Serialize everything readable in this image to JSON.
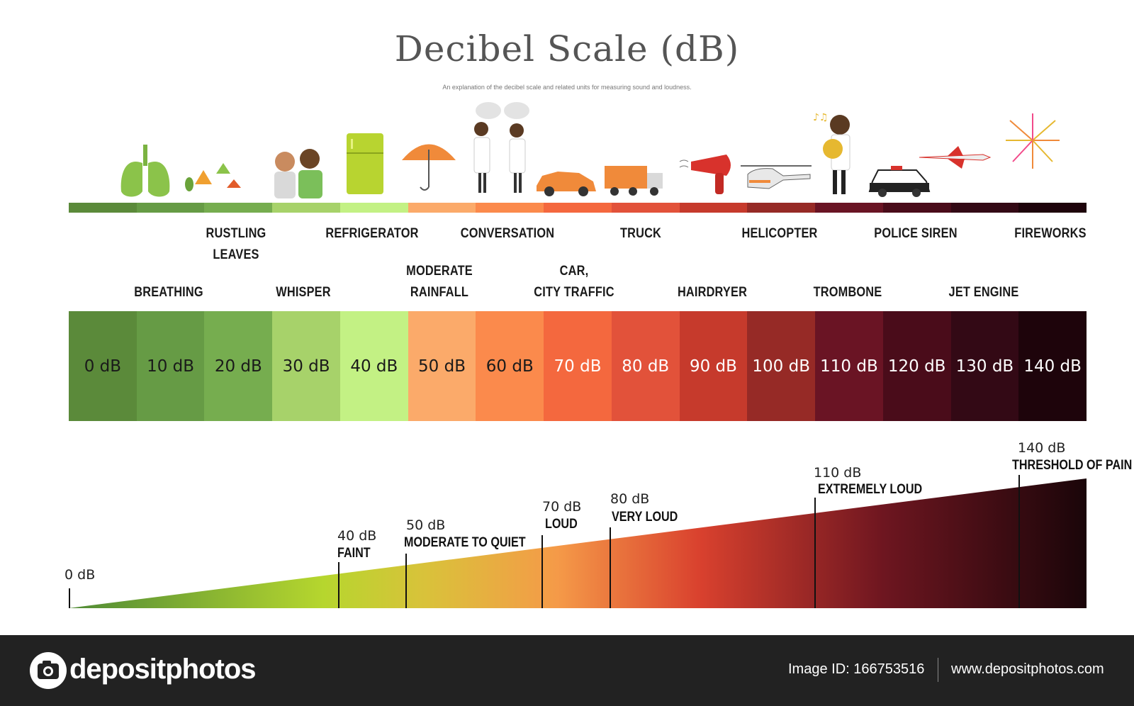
{
  "header": {
    "title": "Decibel Scale (dB)",
    "subtitle": "An explanation of the decibel scale and related units for measuring sound and loudness."
  },
  "scale": {
    "colors": [
      "#5b8a3a",
      "#669b45",
      "#76ad4f",
      "#a7d26a",
      "#c3f184",
      "#fbaa6a",
      "#fb8a4c",
      "#f4683e",
      "#e2523a",
      "#c63a2c",
      "#962a26",
      "#6a1424",
      "#4a0c1a",
      "#330915",
      "#1e040b"
    ],
    "text_colors": [
      "#1a1a1a",
      "#1a1a1a",
      "#1a1a1a",
      "#1a1a1a",
      "#1a1a1a",
      "#1a1a1a",
      "#1a1a1a",
      "#ffffff",
      "#ffffff",
      "#ffffff",
      "#ffffff",
      "#ffffff",
      "#ffffff",
      "#ffffff",
      "#ffffff"
    ],
    "cells": [
      "0 dB",
      "10 dB",
      "20 dB",
      "30 dB",
      "40 dB",
      "50 dB",
      "60 dB",
      "70 dB",
      "80 dB",
      "90 dB",
      "100 dB",
      "110 dB",
      "120 dB",
      "130 dB",
      "140 dB"
    ]
  },
  "sources": {
    "breathing": "BREATHING",
    "rustling_line1": "RUSTLING",
    "rustling_line2": "LEAVES",
    "whisper": "WHISPER",
    "refrigerator": "REFRIGERATOR",
    "rainfall_line1": "MODERATE",
    "rainfall_line2": "RAINFALL",
    "conversation": "CONVERSATION",
    "car_line1": "CAR,",
    "car_line2": "CITY TRAFFIC",
    "truck": "TRUCK",
    "hairdryer": "HAIRDRYER",
    "helicopter": "HELICOPTER",
    "trombone": "TROMBONE",
    "police_siren": "POLICE SIREN",
    "jet_engine": "JET ENGINE",
    "fireworks": "FIREWORKS"
  },
  "loudness": {
    "m0_db": "0 dB",
    "m40_db": "40 dB",
    "m40_label": "FAINT",
    "m50_db": "50 dB",
    "m50_label": "MODERATE TO QUIET",
    "m70_db": "70 dB",
    "m70_label": "LOUD",
    "m80_db": "80 dB",
    "m80_label": "VERY LOUD",
    "m110_db": "110 dB",
    "m110_label": "EXTREMELY LOUD",
    "m140_db": "140 dB",
    "m140_label": "THRESHOLD OF PAIN"
  },
  "footer": {
    "brand": "depositphotos",
    "image_id": "Image ID: 166753516",
    "site": "www.depositphotos.com"
  }
}
